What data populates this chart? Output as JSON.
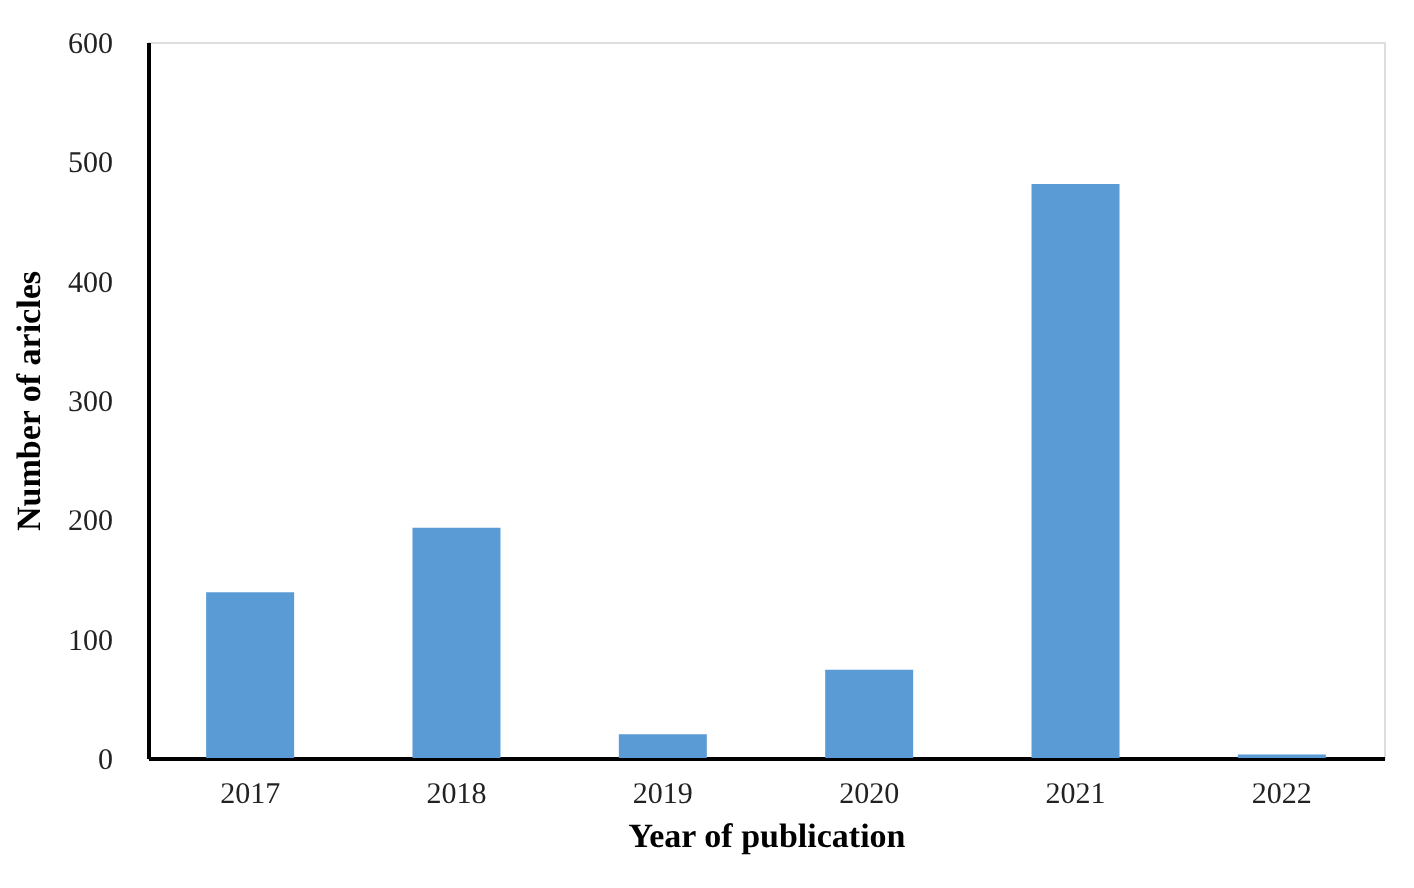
{
  "chart_data": {
    "type": "bar",
    "xlabel": "Year of publication",
    "ylabel": "Number of aricles",
    "categories": [
      "2017",
      "2018",
      "2019",
      "2020",
      "2021",
      "2022"
    ],
    "values": [
      139,
      193,
      20,
      74,
      481,
      3
    ],
    "color": "#5b9bd5",
    "ylim": [
      0,
      600
    ],
    "yticks": [
      0,
      100,
      200,
      300,
      400,
      500,
      600
    ],
    "grid": false
  }
}
